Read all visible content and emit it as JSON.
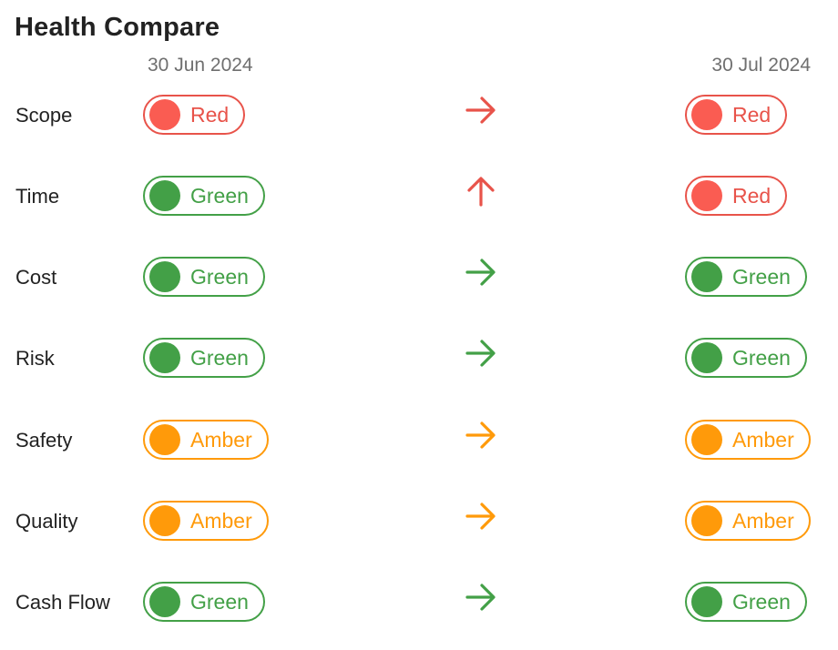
{
  "title": "Health Compare",
  "dates": {
    "from": "30 Jun 2024",
    "to": "30 Jul 2024"
  },
  "colors": {
    "red": "#e8534a",
    "green": "#43a047",
    "amber": "#ff9a0a"
  },
  "rows": [
    {
      "label": "Scope",
      "from": "Red",
      "to": "Red",
      "from_status": "red",
      "to_status": "red",
      "trend": "same",
      "arrow_color": "red"
    },
    {
      "label": "Time",
      "from": "Green",
      "to": "Red",
      "from_status": "green",
      "to_status": "red",
      "trend": "up",
      "arrow_color": "red"
    },
    {
      "label": "Cost",
      "from": "Green",
      "to": "Green",
      "from_status": "green",
      "to_status": "green",
      "trend": "same",
      "arrow_color": "green"
    },
    {
      "label": "Risk",
      "from": "Green",
      "to": "Green",
      "from_status": "green",
      "to_status": "green",
      "trend": "same",
      "arrow_color": "green"
    },
    {
      "label": "Safety",
      "from": "Amber",
      "to": "Amber",
      "from_status": "amber",
      "to_status": "amber",
      "trend": "same",
      "arrow_color": "amber"
    },
    {
      "label": "Quality",
      "from": "Amber",
      "to": "Amber",
      "from_status": "amber",
      "to_status": "amber",
      "trend": "same",
      "arrow_color": "amber"
    },
    {
      "label": "Cash Flow",
      "from": "Green",
      "to": "Green",
      "from_status": "green",
      "to_status": "green",
      "trend": "same",
      "arrow_color": "green"
    }
  ]
}
